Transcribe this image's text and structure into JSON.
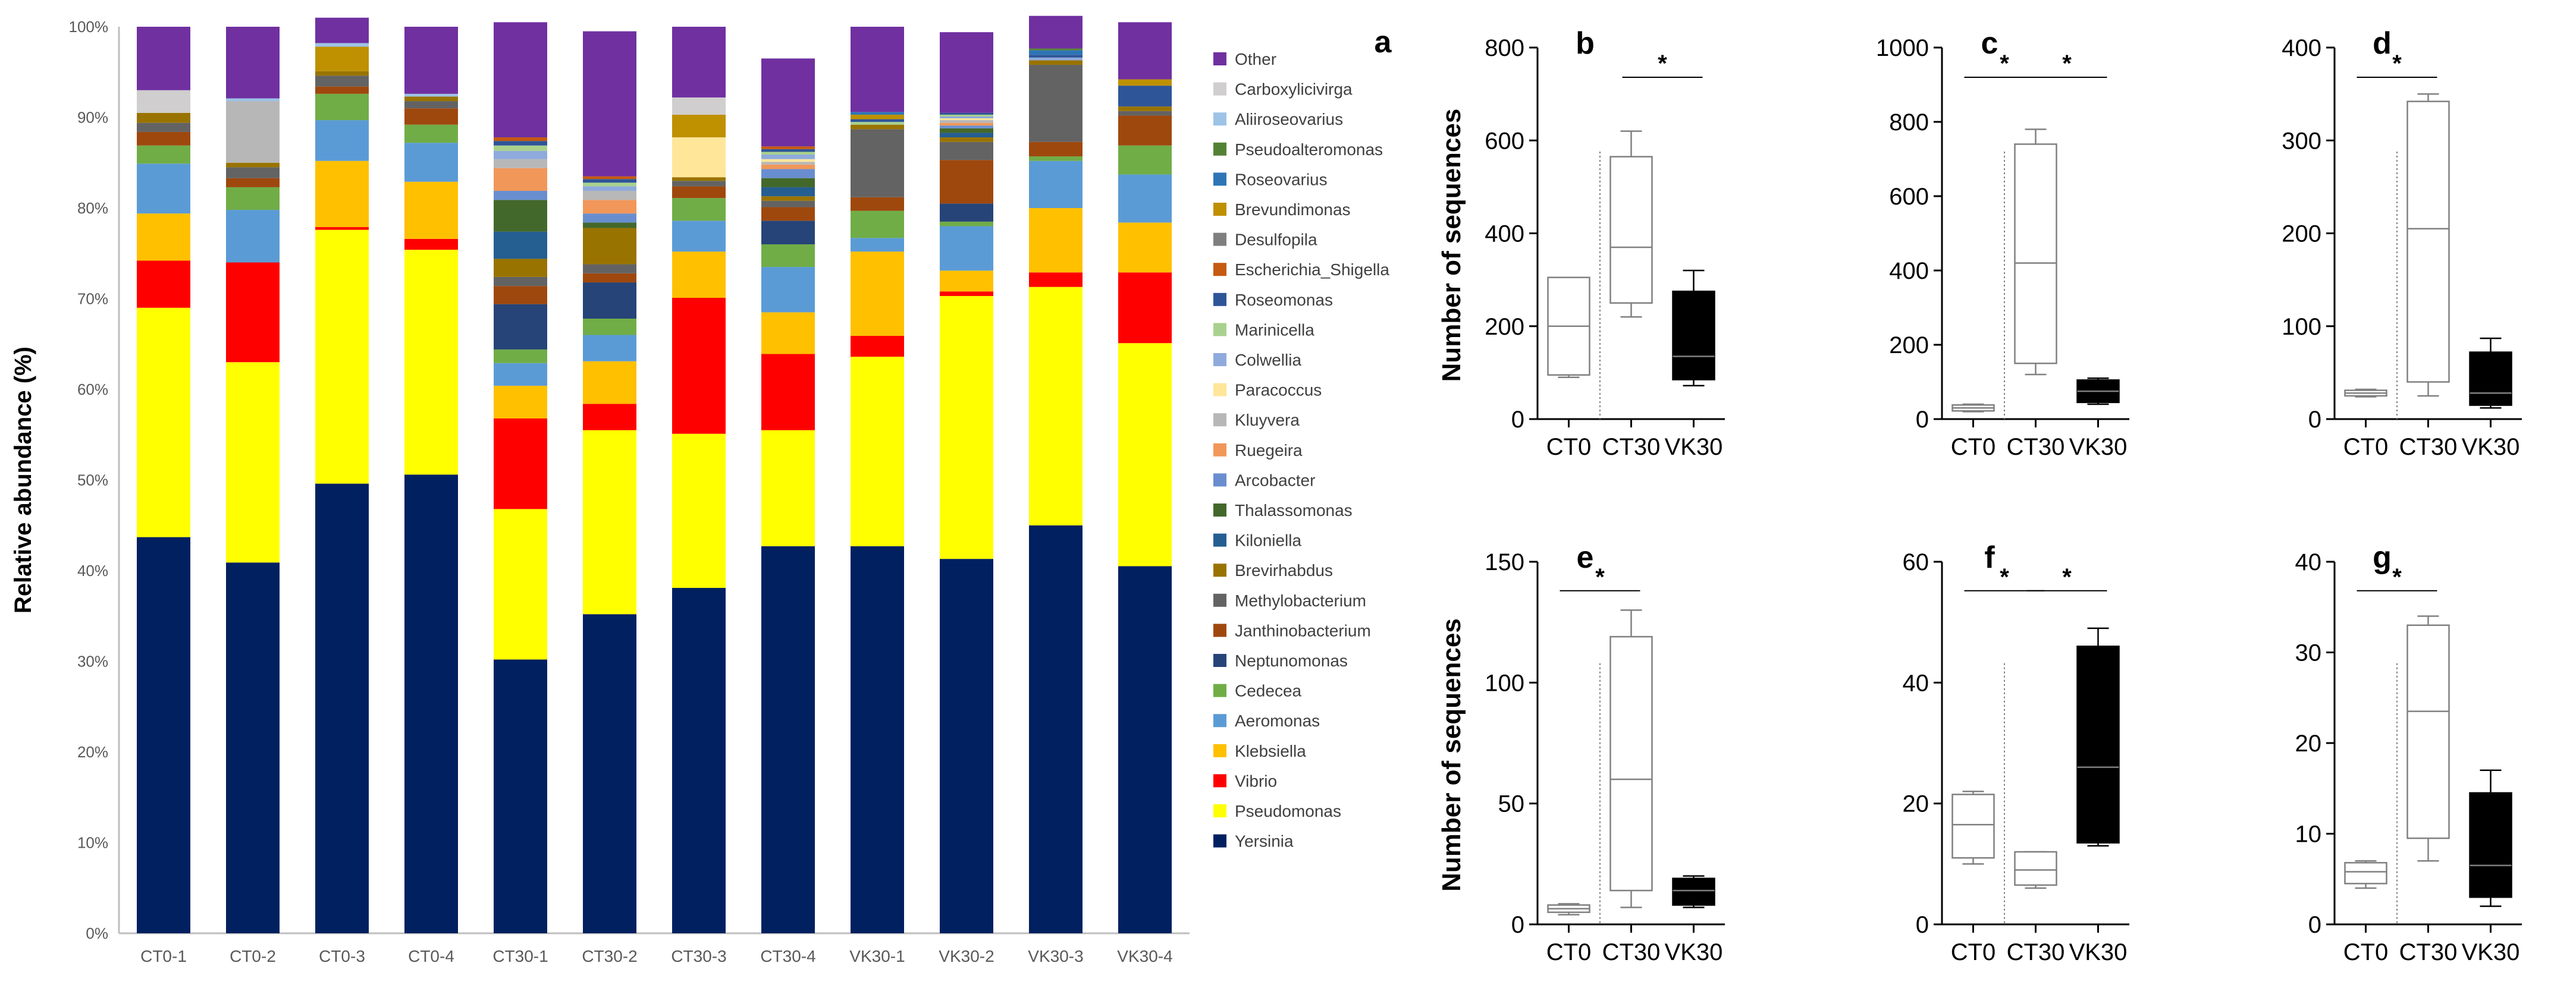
{
  "chart_data": [
    {
      "type": "bar",
      "stacked": true,
      "panel_label": "a",
      "ylabel": "Relative abundance (%)",
      "ylim": [
        0,
        100
      ],
      "yticks": [
        "0%",
        "10%",
        "20%",
        "30%",
        "40%",
        "50%",
        "60%",
        "70%",
        "80%",
        "90%",
        "100%"
      ],
      "categories": [
        "CT0-1",
        "CT0-2",
        "CT0-3",
        "CT0-4",
        "CT30-1",
        "CT30-2",
        "CT30-3",
        "CT30-4",
        "VK30-1",
        "VK30-2",
        "VK30-3",
        "VK30-4"
      ],
      "legend_position": "right",
      "series": [
        {
          "name": "Yersinia",
          "color": "#002060",
          "values": [
            43.7,
            40.9,
            49.6,
            50.6,
            30.2,
            35.2,
            38.1,
            42.7,
            42.7,
            41.3,
            45.0,
            40.5
          ]
        },
        {
          "name": "Pseudomonas",
          "color": "#FFFF00",
          "values": [
            25.3,
            22.1,
            28.0,
            24.8,
            16.6,
            20.3,
            17.0,
            12.8,
            20.9,
            29.0,
            26.3,
            24.6
          ]
        },
        {
          "name": "Vibrio",
          "color": "#FF0000",
          "values": [
            5.2,
            11.0,
            0.3,
            1.2,
            10.0,
            2.9,
            15.0,
            8.4,
            2.3,
            0.5,
            1.6,
            7.8
          ]
        },
        {
          "name": "Klebsiella",
          "color": "#FFC000",
          "values": [
            5.2,
            0,
            7.3,
            6.3,
            3.6,
            4.7,
            5.1,
            4.6,
            9.3,
            2.3,
            7.1,
            5.5
          ]
        },
        {
          "name": "Aeromonas",
          "color": "#5B9BD5",
          "values": [
            5.5,
            5.8,
            4.5,
            4.3,
            2.5,
            2.9,
            3.4,
            5.0,
            1.5,
            4.9,
            5.2,
            5.3
          ]
        },
        {
          "name": "Cedecea",
          "color": "#70AD47",
          "values": [
            2.0,
            2.5,
            2.9,
            2.0,
            1.5,
            1.8,
            2.5,
            2.5,
            3.0,
            0.5,
            0.5,
            3.2
          ]
        },
        {
          "name": "Neptunomonas",
          "color": "#264478",
          "values": [
            0,
            0,
            0,
            0,
            5.0,
            4.0,
            0,
            2.6,
            0,
            2.0,
            0,
            0
          ]
        },
        {
          "name": "Janthinobacterium",
          "color": "#9E480E",
          "values": [
            1.5,
            1.0,
            0.8,
            1.8,
            2.0,
            1.0,
            1.3,
            1.5,
            1.5,
            4.8,
            1.6,
            3.3
          ]
        },
        {
          "name": "Methylobacterium",
          "color": "#636363",
          "values": [
            1.0,
            1.2,
            1.2,
            0.8,
            1.0,
            1.0,
            0.6,
            0.7,
            7.5,
            2.0,
            8.5,
            0.5
          ]
        },
        {
          "name": "Brevirhabdus",
          "color": "#997300",
          "values": [
            1.1,
            0.5,
            0.5,
            0.5,
            2.0,
            4.0,
            0.4,
            0.5,
            0.5,
            0.5,
            0.5,
            0.5
          ]
        },
        {
          "name": "Kiloniella",
          "color": "#255E91",
          "values": [
            0,
            0,
            0,
            0,
            3.0,
            0,
            0,
            1.0,
            0,
            0.5,
            0,
            0
          ]
        },
        {
          "name": "Thalassomonas",
          "color": "#43682B",
          "values": [
            0,
            0,
            0,
            0,
            3.5,
            0.6,
            0,
            1.0,
            0,
            0.5,
            0,
            0
          ]
        },
        {
          "name": "Arcobacter",
          "color": "#698ED0",
          "values": [
            0,
            0,
            0,
            0,
            1.0,
            1.0,
            0,
            1.0,
            0,
            0.3,
            0,
            0
          ]
        },
        {
          "name": "Ruegeira",
          "color": "#F1975A",
          "values": [
            0,
            0,
            0,
            0,
            2.5,
            1.5,
            0,
            0.5,
            0,
            0.3,
            0,
            0
          ]
        },
        {
          "name": "Kluyvera",
          "color": "#B7B7B7",
          "values": [
            0,
            6.8,
            0,
            0,
            1.0,
            1.0,
            0,
            0.3,
            0,
            0.3,
            0,
            0
          ]
        },
        {
          "name": "Paracoccus",
          "color": "#FFE699",
          "values": [
            0,
            0,
            0,
            0,
            0,
            0,
            4.4,
            0.3,
            0,
            0.2,
            0,
            0
          ]
        },
        {
          "name": "Colwellia",
          "color": "#8FAADC",
          "values": [
            0,
            0,
            0,
            0,
            0.9,
            0.5,
            0,
            0.5,
            0,
            0.2,
            0.3,
            0
          ]
        },
        {
          "name": "Marinicella",
          "color": "#A9D18E",
          "values": [
            0,
            0,
            0,
            0,
            0.6,
            0.4,
            0,
            0.3,
            0.3,
            0.2,
            0,
            0
          ]
        },
        {
          "name": "Roseomonas",
          "color": "#2E5597",
          "values": [
            0,
            0,
            0,
            0,
            0.5,
            0.4,
            0,
            0.3,
            0.3,
            0.2,
            0.3,
            2.3
          ]
        },
        {
          "name": "Escherichia_Shigella",
          "color": "#C55A11",
          "values": [
            0,
            0,
            0,
            0,
            0.4,
            0.3,
            0,
            0.3,
            0,
            0,
            0,
            0
          ]
        },
        {
          "name": "Desulfopila",
          "color": "#7F7F7F",
          "values": [
            0,
            0,
            0,
            0,
            0,
            0,
            0,
            0,
            0,
            0,
            0,
            0
          ]
        },
        {
          "name": "Brevundimonas",
          "color": "#BF9000",
          "values": [
            0,
            0,
            2.7,
            0,
            0,
            0,
            2.5,
            0,
            0.5,
            0,
            0,
            0.7
          ]
        },
        {
          "name": "Roseovarius",
          "color": "#2E75B6",
          "values": [
            0,
            0,
            0,
            0,
            0,
            0,
            0,
            0,
            0.3,
            0,
            0.5,
            0
          ]
        },
        {
          "name": "Pseudoalteromonas",
          "color": "#548235",
          "values": [
            0,
            0,
            0,
            0,
            0,
            0,
            0,
            0,
            0,
            0,
            0.2,
            0
          ]
        },
        {
          "name": "Aliiroseovarius",
          "color": "#9DC3E6",
          "values": [
            0,
            0.3,
            0.4,
            0.3,
            0,
            0,
            0,
            0,
            0,
            0,
            0,
            0
          ]
        },
        {
          "name": "Carboxylicivirga",
          "color": "#D0CECE",
          "values": [
            2.5,
            0,
            0,
            0,
            0,
            0,
            1.9,
            0,
            0,
            0,
            0,
            0
          ]
        },
        {
          "name": "Other",
          "color": "#7030A0",
          "values": [
            7.0,
            7.9,
            2.8,
            7.4,
            12.7,
            16.0,
            7.8,
            9.7,
            9.4,
            8.9,
            3.6,
            6.3
          ]
        }
      ]
    },
    {
      "type": "box",
      "panel_label": "b",
      "ylabel": "Number of sequences",
      "ylim": [
        0,
        800
      ],
      "yticks": [
        "0",
        "200",
        "400",
        "600",
        "800"
      ],
      "categories": [
        "CT0",
        "CT30",
        "VK30"
      ],
      "boxes": [
        {
          "name": "CT0",
          "min": 90,
          "q1": 95,
          "median": 200,
          "q3": 305,
          "max": 305,
          "fill": "white"
        },
        {
          "name": "CT30",
          "min": 220,
          "q1": 250,
          "median": 370,
          "q3": 565,
          "max": 620,
          "fill": "white"
        },
        {
          "name": "VK30",
          "min": 72,
          "q1": 85,
          "median": 135,
          "q3": 275,
          "max": 320,
          "fill": "black"
        }
      ],
      "significance": [
        {
          "from": "CT30",
          "to": "VK30",
          "label": "*"
        }
      ]
    },
    {
      "type": "box",
      "panel_label": "c",
      "ylabel": "",
      "ylim": [
        0,
        1000
      ],
      "yticks": [
        "0",
        "200",
        "400",
        "600",
        "800",
        "1000"
      ],
      "categories": [
        "CT0",
        "CT30",
        "VK30"
      ],
      "boxes": [
        {
          "name": "CT0",
          "min": 20,
          "q1": 22,
          "median": 30,
          "q3": 38,
          "max": 40,
          "fill": "white"
        },
        {
          "name": "CT30",
          "min": 120,
          "q1": 150,
          "median": 420,
          "q3": 740,
          "max": 780,
          "fill": "white"
        },
        {
          "name": "VK30",
          "min": 40,
          "q1": 45,
          "median": 75,
          "q3": 105,
          "max": 110,
          "fill": "black"
        }
      ],
      "significance": [
        {
          "from": "CT0",
          "to": "CT30",
          "label": "*"
        },
        {
          "from": "CT30",
          "to": "VK30",
          "label": "*"
        }
      ]
    },
    {
      "type": "box",
      "panel_label": "d",
      "ylabel": "",
      "ylim": [
        0,
        400
      ],
      "yticks": [
        "0",
        "100",
        "200",
        "300",
        "400"
      ],
      "categories": [
        "CT0",
        "CT30",
        "VK30"
      ],
      "boxes": [
        {
          "name": "CT0",
          "min": 24,
          "q1": 25,
          "median": 28,
          "q3": 31,
          "max": 32,
          "fill": "white"
        },
        {
          "name": "CT30",
          "min": 25,
          "q1": 40,
          "median": 205,
          "q3": 342,
          "max": 350,
          "fill": "white"
        },
        {
          "name": "VK30",
          "min": 12,
          "q1": 15,
          "median": 28,
          "q3": 72,
          "max": 87,
          "fill": "black"
        }
      ],
      "significance": [
        {
          "from": "CT0",
          "to": "CT30",
          "label": "*"
        }
      ]
    },
    {
      "type": "box",
      "panel_label": "e",
      "ylabel": "Number of sequences",
      "ylim": [
        0,
        150
      ],
      "yticks": [
        "0",
        "50",
        "100",
        "150"
      ],
      "categories": [
        "CT0",
        "CT30",
        "VK30"
      ],
      "boxes": [
        {
          "name": "CT0",
          "min": 4,
          "q1": 5,
          "median": 6.5,
          "q3": 8,
          "max": 8.5,
          "fill": "white"
        },
        {
          "name": "CT30",
          "min": 7,
          "q1": 14,
          "median": 60,
          "q3": 119,
          "max": 130,
          "fill": "white"
        },
        {
          "name": "VK30",
          "min": 7,
          "q1": 8,
          "median": 14,
          "q3": 19,
          "max": 20,
          "fill": "black"
        }
      ],
      "significance": [
        {
          "from": "CT0",
          "to": "CT30",
          "label": "*"
        }
      ]
    },
    {
      "type": "box",
      "panel_label": "f",
      "ylabel": "",
      "ylim": [
        0,
        60
      ],
      "yticks": [
        "0",
        "20",
        "40",
        "60"
      ],
      "categories": [
        "CT0",
        "CT30",
        "VK30"
      ],
      "boxes": [
        {
          "name": "CT0",
          "min": 10,
          "q1": 11,
          "median": 16.5,
          "q3": 21.5,
          "max": 22,
          "fill": "white"
        },
        {
          "name": "CT30",
          "min": 6,
          "q1": 6.5,
          "median": 9,
          "q3": 12,
          "max": 12,
          "fill": "white"
        },
        {
          "name": "VK30",
          "min": 13,
          "q1": 13.5,
          "median": 26,
          "q3": 46,
          "max": 49,
          "fill": "black"
        }
      ],
      "significance": [
        {
          "from": "CT0",
          "to": "CT30",
          "label": "*"
        },
        {
          "from": "CT30",
          "to": "VK30",
          "label": "*"
        }
      ]
    },
    {
      "type": "box",
      "panel_label": "g",
      "ylabel": "",
      "ylim": [
        0,
        40
      ],
      "yticks": [
        "0",
        "10",
        "20",
        "30",
        "40"
      ],
      "categories": [
        "CT0",
        "CT30",
        "VK30"
      ],
      "boxes": [
        {
          "name": "CT0",
          "min": 4,
          "q1": 4.5,
          "median": 5.8,
          "q3": 6.8,
          "max": 7,
          "fill": "white"
        },
        {
          "name": "CT30",
          "min": 7,
          "q1": 9.5,
          "median": 23.5,
          "q3": 33,
          "max": 34,
          "fill": "white"
        },
        {
          "name": "VK30",
          "min": 2,
          "q1": 3,
          "median": 6.5,
          "q3": 14.5,
          "max": 17,
          "fill": "black"
        }
      ],
      "significance": [
        {
          "from": "CT0",
          "to": "CT30",
          "label": "*"
        }
      ]
    }
  ]
}
